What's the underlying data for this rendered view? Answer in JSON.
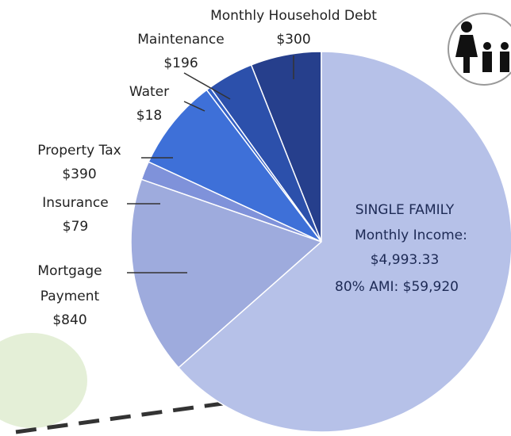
{
  "chart_data": {
    "type": "pie",
    "categories": [
      "Monthly Household Debt",
      "Maintenance",
      "Water",
      "Property Tax",
      "Insurance",
      "Mortgage Payment"
    ],
    "values": [
      300,
      196,
      18,
      390,
      79,
      840
    ],
    "value_labels": [
      "$300",
      "$196",
      "$18",
      "$390",
      "$79",
      "$840"
    ],
    "colors": [
      "#263f8c",
      "#2c50ab",
      "#3461c6",
      "#3e70d8",
      "#7f92da",
      "#9eabdd"
    ],
    "total": {
      "label": "Monthly Income:",
      "value": 4993.33,
      "value_label": "$4,993.33",
      "color": "#b6c1e8"
    },
    "annotations": [
      "SINGLE FAMILY",
      "80% AMI: $59,920"
    ]
  }
}
